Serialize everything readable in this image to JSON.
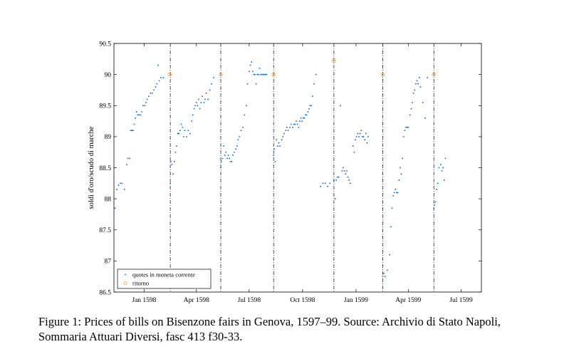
{
  "caption": "Figure 1: Prices of bills on Bisenzone fairs in Genova, 1597–99. Source: Archivio di Stato Napoli, Sommaria Attuari Diversi, fasc 413 f30-33.",
  "chart_data": {
    "type": "scatter",
    "title": "",
    "xlabel": "",
    "ylabel": "soldi d'oro/scudo di marche",
    "xlim": [
      "1597-11-10",
      "1599-08-05"
    ],
    "ylim": [
      86.5,
      90.5
    ],
    "yticks": [
      86.5,
      87,
      87.5,
      88,
      88.5,
      89,
      89.5,
      90,
      90.5
    ],
    "ytick_labels": [
      "86.5",
      "87",
      "87.5",
      "88",
      "88.5",
      "89",
      "89.5",
      "90",
      "90.5"
    ],
    "xticks": [
      {
        "date": "1598-01-01",
        "label": "Jan 1598"
      },
      {
        "date": "1598-04-01",
        "label": "Apr 1598"
      },
      {
        "date": "1598-07-01",
        "label": "Jul 1598"
      },
      {
        "date": "1598-10-01",
        "label": "Oct 1598"
      },
      {
        "date": "1599-01-01",
        "label": "Jan 1599"
      },
      {
        "date": "1599-04-01",
        "label": "Apr 1599"
      },
      {
        "date": "1599-07-01",
        "label": "Jul 1599"
      }
    ],
    "fair_lines": [
      "1598-02-15",
      "1598-05-13",
      "1598-08-12",
      "1598-11-24",
      "1599-02-16",
      "1599-05-15"
    ],
    "legend": {
      "placement": "bottom-left",
      "entries": [
        "quotes in moneta corrente",
        "ritorno"
      ]
    },
    "colors": {
      "quotes": "#1f6fc4",
      "ritorno": "#f0a030"
    },
    "series": [
      {
        "name": "quotes in moneta corrente",
        "marker": "dot",
        "points": [
          [
            "1597-11-12",
            87.85
          ],
          [
            "1597-11-15",
            88.15
          ],
          [
            "1597-11-18",
            88.22
          ],
          [
            "1597-11-21",
            88.25
          ],
          [
            "1597-11-24",
            88.25
          ],
          [
            "1597-11-28",
            88.15
          ],
          [
            "1597-12-02",
            88.55
          ],
          [
            "1597-12-04",
            88.65
          ],
          [
            "1597-12-07",
            88.65
          ],
          [
            "1597-12-09",
            89.1
          ],
          [
            "1597-12-11",
            89.1
          ],
          [
            "1597-12-13",
            89.1
          ],
          [
            "1597-12-15",
            89.2
          ],
          [
            "1597-12-17",
            89.3
          ],
          [
            "1597-12-19",
            89.4
          ],
          [
            "1597-12-21",
            89.35
          ],
          [
            "1597-12-23",
            89.35
          ],
          [
            "1597-12-26",
            89.35
          ],
          [
            "1597-12-28",
            89.4
          ],
          [
            "1597-12-30",
            89.5
          ],
          [
            "1598-01-02",
            89.5
          ],
          [
            "1598-01-04",
            89.55
          ],
          [
            "1598-01-06",
            89.6
          ],
          [
            "1598-01-09",
            89.65
          ],
          [
            "1598-01-12",
            89.7
          ],
          [
            "1598-01-15",
            89.7
          ],
          [
            "1598-01-18",
            89.75
          ],
          [
            "1598-01-21",
            89.8
          ],
          [
            "1598-01-23",
            89.85
          ],
          [
            "1598-01-25",
            90.15
          ],
          [
            "1598-01-27",
            89.9
          ],
          [
            "1598-01-30",
            89.95
          ],
          [
            "1598-02-03",
            89.95
          ],
          [
            "1598-02-15",
            88.25
          ],
          [
            "1598-02-16",
            88.6
          ],
          [
            "1598-02-18",
            88.55
          ],
          [
            "1598-02-20",
            88.4
          ],
          [
            "1598-02-22",
            88.6
          ],
          [
            "1598-02-24",
            88.75
          ],
          [
            "1598-02-26",
            88.85
          ],
          [
            "1598-02-28",
            89.05
          ],
          [
            "1598-03-02",
            89.05
          ],
          [
            "1598-03-04",
            89.1
          ],
          [
            "1598-03-06",
            89.2
          ],
          [
            "1598-03-08",
            89.15
          ],
          [
            "1598-03-10",
            89.0
          ],
          [
            "1598-03-12",
            89.1
          ],
          [
            "1598-03-15",
            89.0
          ],
          [
            "1598-03-18",
            89.1
          ],
          [
            "1598-03-21",
            89.05
          ],
          [
            "1598-03-24",
            89.25
          ],
          [
            "1598-03-26",
            89.35
          ],
          [
            "1598-03-28",
            89.45
          ],
          [
            "1598-03-30",
            89.5
          ],
          [
            "1598-04-01",
            89.55
          ],
          [
            "1598-04-03",
            89.5
          ],
          [
            "1598-04-05",
            89.6
          ],
          [
            "1598-04-07",
            89.45
          ],
          [
            "1598-04-09",
            89.55
          ],
          [
            "1598-04-11",
            89.65
          ],
          [
            "1598-04-14",
            89.55
          ],
          [
            "1598-04-16",
            89.6
          ],
          [
            "1598-04-18",
            89.7
          ],
          [
            "1598-04-21",
            89.6
          ],
          [
            "1598-04-24",
            89.75
          ],
          [
            "1598-04-27",
            89.85
          ],
          [
            "1598-05-01",
            89.95
          ],
          [
            "1598-05-13",
            88.5
          ],
          [
            "1598-05-14",
            88.6
          ],
          [
            "1598-05-16",
            88.65
          ],
          [
            "1598-05-18",
            88.85
          ],
          [
            "1598-05-20",
            88.7
          ],
          [
            "1598-05-22",
            88.75
          ],
          [
            "1598-05-24",
            88.65
          ],
          [
            "1598-05-26",
            88.7
          ],
          [
            "1598-05-28",
            88.65
          ],
          [
            "1598-05-30",
            88.6
          ],
          [
            "1598-06-01",
            88.6
          ],
          [
            "1598-06-03",
            88.7
          ],
          [
            "1598-06-05",
            88.75
          ],
          [
            "1598-06-08",
            88.8
          ],
          [
            "1598-06-10",
            88.85
          ],
          [
            "1598-06-12",
            88.95
          ],
          [
            "1598-06-14",
            89.0
          ],
          [
            "1598-06-17",
            89.1
          ],
          [
            "1598-06-20",
            89.15
          ],
          [
            "1598-06-23",
            89.35
          ],
          [
            "1598-06-26",
            89.5
          ],
          [
            "1598-06-28",
            89.85
          ],
          [
            "1598-07-01",
            90.05
          ],
          [
            "1598-07-03",
            90.15
          ],
          [
            "1598-07-05",
            90.2
          ],
          [
            "1598-07-07",
            90.05
          ],
          [
            "1598-07-09",
            90.0
          ],
          [
            "1598-07-11",
            90.0
          ],
          [
            "1598-07-13",
            89.85
          ],
          [
            "1598-07-15",
            90.0
          ],
          [
            "1598-07-17",
            90.0
          ],
          [
            "1598-07-19",
            90.1
          ],
          [
            "1598-07-21",
            90.0
          ],
          [
            "1598-07-23",
            90.0
          ],
          [
            "1598-07-25",
            90.0
          ],
          [
            "1598-07-27",
            90.0
          ],
          [
            "1598-07-29",
            90.0
          ],
          [
            "1598-07-31",
            90.0
          ],
          [
            "1598-08-12",
            88.7
          ],
          [
            "1598-08-13",
            88.8
          ],
          [
            "1598-08-15",
            88.6
          ],
          [
            "1598-08-17",
            88.95
          ],
          [
            "1598-08-19",
            88.85
          ],
          [
            "1598-08-21",
            88.9
          ],
          [
            "1598-08-23",
            88.85
          ],
          [
            "1598-08-26",
            88.95
          ],
          [
            "1598-08-28",
            89.0
          ],
          [
            "1598-08-30",
            89.05
          ],
          [
            "1598-09-02",
            89.1
          ],
          [
            "1598-09-04",
            89.15
          ],
          [
            "1598-09-06",
            89.1
          ],
          [
            "1598-09-09",
            89.15
          ],
          [
            "1598-09-11",
            89.2
          ],
          [
            "1598-09-14",
            89.15
          ],
          [
            "1598-09-16",
            89.2
          ],
          [
            "1598-09-18",
            89.2
          ],
          [
            "1598-09-20",
            89.25
          ],
          [
            "1598-09-22",
            89.2
          ],
          [
            "1598-09-24",
            89.15
          ],
          [
            "1598-09-26",
            89.25
          ],
          [
            "1598-09-28",
            89.3
          ],
          [
            "1598-09-30",
            89.25
          ],
          [
            "1598-10-02",
            89.3
          ],
          [
            "1598-10-04",
            89.3
          ],
          [
            "1598-10-06",
            89.35
          ],
          [
            "1598-10-08",
            89.35
          ],
          [
            "1598-10-10",
            89.4
          ],
          [
            "1598-10-12",
            89.45
          ],
          [
            "1598-10-14",
            89.5
          ],
          [
            "1598-10-16",
            89.5
          ],
          [
            "1598-10-18",
            89.65
          ],
          [
            "1598-10-21",
            89.85
          ],
          [
            "1598-10-24",
            90.0
          ],
          [
            "1598-11-01",
            88.2
          ],
          [
            "1598-11-05",
            88.25
          ],
          [
            "1598-11-09",
            88.25
          ],
          [
            "1598-11-13",
            88.2
          ],
          [
            "1598-11-17",
            88.25
          ],
          [
            "1598-11-24",
            88.3
          ],
          [
            "1598-11-26",
            88.0
          ],
          [
            "1598-11-28",
            88.3
          ],
          [
            "1598-11-30",
            88.35
          ],
          [
            "1598-12-02",
            88.35
          ],
          [
            "1598-12-05",
            89.5
          ],
          [
            "1598-12-08",
            88.45
          ],
          [
            "1598-12-10",
            88.5
          ],
          [
            "1598-12-12",
            88.45
          ],
          [
            "1598-12-14",
            88.4
          ],
          [
            "1598-12-16",
            88.45
          ],
          [
            "1598-12-18",
            88.35
          ],
          [
            "1598-12-20",
            88.3
          ],
          [
            "1598-12-22",
            88.25
          ],
          [
            "1598-12-27",
            88.85
          ],
          [
            "1598-12-29",
            88.75
          ],
          [
            "1598-12-31",
            88.95
          ],
          [
            "1599-01-02",
            89.0
          ],
          [
            "1599-01-04",
            89.05
          ],
          [
            "1599-01-06",
            89.0
          ],
          [
            "1599-01-08",
            89.05
          ],
          [
            "1599-01-10",
            89.1
          ],
          [
            "1599-01-12",
            89.0
          ],
          [
            "1599-01-14",
            89.0
          ],
          [
            "1599-01-16",
            88.95
          ],
          [
            "1599-01-18",
            89.05
          ],
          [
            "1599-01-20",
            88.9
          ],
          [
            "1599-01-22",
            89.0
          ],
          [
            "1599-02-16",
            86.75
          ],
          [
            "1599-02-18",
            86.8
          ],
          [
            "1599-02-20",
            86.75
          ],
          [
            "1599-02-24",
            86.85
          ],
          [
            "1599-02-28",
            87.1
          ],
          [
            "1599-03-02",
            87.55
          ],
          [
            "1599-03-04",
            87.85
          ],
          [
            "1599-03-06",
            88.05
          ],
          [
            "1599-03-08",
            88.1
          ],
          [
            "1599-03-10",
            88.15
          ],
          [
            "1599-03-12",
            88.1
          ],
          [
            "1599-03-14",
            88.1
          ],
          [
            "1599-03-16",
            88.3
          ],
          [
            "1599-03-18",
            88.5
          ],
          [
            "1599-03-20",
            88.4
          ],
          [
            "1599-03-22",
            88.65
          ],
          [
            "1599-03-24",
            89.0
          ],
          [
            "1599-03-26",
            89.1
          ],
          [
            "1599-03-28",
            89.15
          ],
          [
            "1599-03-30",
            89.15
          ],
          [
            "1599-04-01",
            89.15
          ],
          [
            "1599-04-04",
            89.35
          ],
          [
            "1599-04-06",
            89.45
          ],
          [
            "1599-04-08",
            89.55
          ],
          [
            "1599-04-10",
            89.7
          ],
          [
            "1599-04-12",
            89.75
          ],
          [
            "1599-04-14",
            89.85
          ],
          [
            "1599-04-16",
            89.9
          ],
          [
            "1599-04-18",
            89.85
          ],
          [
            "1599-04-20",
            89.95
          ],
          [
            "1599-04-22",
            89.8
          ],
          [
            "1599-04-26",
            89.55
          ],
          [
            "1599-04-30",
            89.3
          ],
          [
            "1599-05-04",
            89.95
          ],
          [
            "1599-05-15",
            87.85
          ],
          [
            "1599-05-16",
            87.9
          ],
          [
            "1599-05-18",
            87.95
          ],
          [
            "1599-05-20",
            88.15
          ],
          [
            "1599-05-22",
            88.25
          ],
          [
            "1599-05-24",
            88.5
          ],
          [
            "1599-05-27",
            88.55
          ],
          [
            "1599-05-29",
            88.45
          ],
          [
            "1599-05-31",
            88.5
          ],
          [
            "1599-06-02",
            88.3
          ],
          [
            "1599-06-04",
            88.65
          ]
        ]
      },
      {
        "name": "ritorno",
        "marker": "circle",
        "points": [
          [
            "1598-02-14",
            90.0
          ],
          [
            "1598-05-13",
            90.0
          ],
          [
            "1598-08-12",
            90.0
          ],
          [
            "1598-11-24",
            90.22
          ],
          [
            "1599-02-16",
            90.0
          ],
          [
            "1599-05-15",
            90.0
          ]
        ]
      }
    ]
  }
}
